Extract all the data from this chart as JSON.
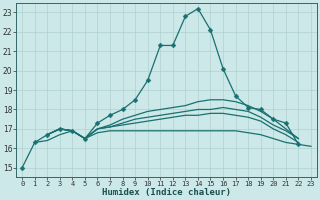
{
  "background_color": "#cce8e8",
  "grid_color": "#b0d0d0",
  "line_color": "#1a7070",
  "xlabel": "Humidex (Indice chaleur)",
  "xlim": [
    -0.5,
    23.5
  ],
  "ylim": [
    14.5,
    23.5
  ],
  "yticks": [
    15,
    16,
    17,
    18,
    19,
    20,
    21,
    22,
    23
  ],
  "xticks": [
    0,
    1,
    2,
    3,
    4,
    5,
    6,
    7,
    8,
    9,
    10,
    11,
    12,
    13,
    14,
    15,
    16,
    17,
    18,
    19,
    20,
    21,
    22,
    23
  ],
  "series": [
    {
      "x": [
        0,
        1,
        2,
        3,
        4,
        5,
        6,
        7,
        8,
        9,
        10,
        11,
        12,
        13,
        14,
        15,
        16,
        17,
        18,
        19,
        20,
        21,
        22
      ],
      "y": [
        15.0,
        16.3,
        16.7,
        17.0,
        16.9,
        16.5,
        17.3,
        17.7,
        18.0,
        18.5,
        19.5,
        21.3,
        21.3,
        22.8,
        23.2,
        22.1,
        20.1,
        18.7,
        18.1,
        18.0,
        17.5,
        17.3,
        16.2
      ],
      "marker": true
    },
    {
      "x": [
        2,
        3,
        4,
        5,
        6,
        7,
        8,
        9,
        10,
        11,
        12,
        13,
        14,
        15,
        16,
        17,
        18,
        19,
        20,
        21,
        22
      ],
      "y": [
        16.7,
        17.0,
        16.9,
        16.5,
        17.0,
        17.2,
        17.5,
        17.7,
        17.9,
        18.0,
        18.1,
        18.2,
        18.4,
        18.5,
        18.5,
        18.4,
        18.2,
        17.9,
        17.5,
        17.0,
        16.5
      ],
      "marker": false
    },
    {
      "x": [
        2,
        3,
        4,
        5,
        6,
        7,
        8,
        9,
        10,
        11,
        12,
        13,
        14,
        15,
        16,
        17,
        18,
        19,
        20,
        21,
        22
      ],
      "y": [
        16.7,
        17.0,
        16.9,
        16.5,
        17.0,
        17.1,
        17.3,
        17.5,
        17.6,
        17.7,
        17.8,
        17.9,
        18.0,
        18.0,
        18.1,
        18.0,
        17.9,
        17.6,
        17.2,
        16.9,
        16.5
      ],
      "marker": false
    },
    {
      "x": [
        2,
        3,
        4,
        5,
        6,
        7,
        8,
        9,
        10,
        11,
        12,
        13,
        14,
        15,
        16,
        17,
        18,
        19,
        20,
        21,
        22
      ],
      "y": [
        16.7,
        17.0,
        16.9,
        16.5,
        17.0,
        17.1,
        17.2,
        17.3,
        17.4,
        17.5,
        17.6,
        17.7,
        17.7,
        17.8,
        17.8,
        17.7,
        17.6,
        17.4,
        17.0,
        16.7,
        16.3
      ],
      "marker": false
    },
    {
      "x": [
        1,
        2,
        3,
        4,
        5,
        6,
        7,
        8,
        9,
        10,
        11,
        12,
        13,
        14,
        15,
        16,
        17,
        18,
        19,
        20,
        21,
        22,
        23
      ],
      "y": [
        16.3,
        16.4,
        16.7,
        16.9,
        16.5,
        16.8,
        16.9,
        16.9,
        16.9,
        16.9,
        16.9,
        16.9,
        16.9,
        16.9,
        16.9,
        16.9,
        16.9,
        16.8,
        16.7,
        16.5,
        16.3,
        16.2,
        16.1
      ],
      "marker": false
    }
  ]
}
